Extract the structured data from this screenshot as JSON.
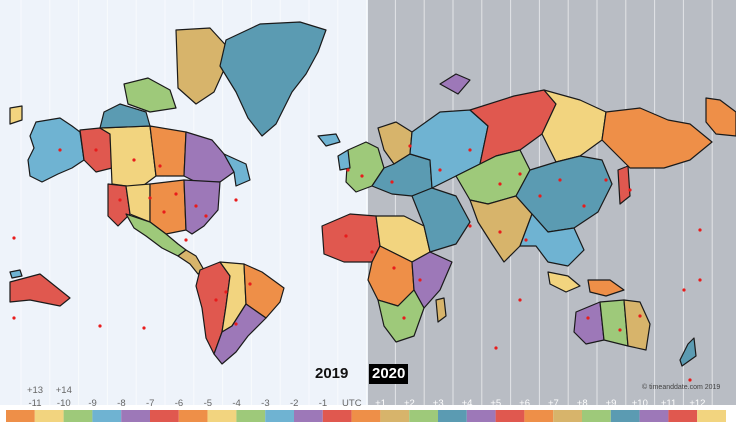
{
  "dates": {
    "left": "2019",
    "right": "2020"
  },
  "copyright": "© timeanddate.com 2019",
  "utc_offsets": [
    "-11",
    "-10",
    "-9",
    "-8",
    "-7",
    "-6",
    "-5",
    "-4",
    "-3",
    "-2",
    "-1",
    "UTC",
    "+1",
    "+2",
    "+3",
    "+4",
    "+5",
    "+6",
    "+7",
    "+8",
    "+9",
    "+10",
    "+11",
    "+12"
  ],
  "extra_offsets": [
    "+13",
    "+14"
  ],
  "colors": {
    "ocean_day": "#eef3fa",
    "ocean_night": "#b9bdc4",
    "land_blue": "#6fb3d2",
    "land_yellow": "#f2d47f",
    "land_orange": "#ee8f48",
    "land_red": "#e0584f",
    "land_purple": "#9d78b8",
    "land_green": "#9ec97a",
    "land_tan": "#d7b46b",
    "land_teal": "#5b9bb2",
    "land_gray": "#c0c0c0",
    "city_dot": "#e81c1c"
  },
  "strip_colors": [
    "#ee8f48",
    "#f2d47f",
    "#9ec97a",
    "#6fb3d2",
    "#9d78b8",
    "#e0584f",
    "#ee8f48",
    "#f2d47f",
    "#9ec97a",
    "#6fb3d2",
    "#9d78b8",
    "#e0584f",
    "#ee8f48",
    "#d7b46b",
    "#9ec97a",
    "#5b9bb2",
    "#9d78b8",
    "#e0584f",
    "#ee8f48",
    "#d7b46b",
    "#9ec97a",
    "#5b9bb2",
    "#9d78b8",
    "#e0584f",
    "#f2d47f"
  ]
}
